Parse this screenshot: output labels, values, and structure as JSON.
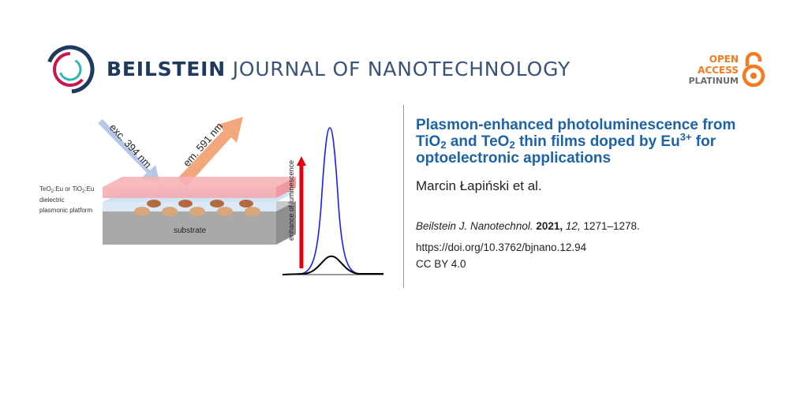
{
  "journal": {
    "name_bold": "BEILSTEIN",
    "name_rest": "JOURNAL OF NANOTECHNOLOGY"
  },
  "open_access": {
    "line1": "OPEN",
    "line2": "ACCESS",
    "line3": "PLATINUM"
  },
  "figure": {
    "exc_label": "exc. 394 nm",
    "em_label": "em. 591 nm",
    "layer_labels": {
      "film_prefix1": "TeO",
      "film_sub1": "2",
      "film_mid1": ":Eu or TiO",
      "film_sub2": "2",
      "film_suffix": ":Eu",
      "dielectric": "dielectric",
      "platform": "plasmonic platform"
    },
    "substrate_label": "substrate",
    "arrow_label": "enhance of luminescence",
    "colors": {
      "enhanced": "#1a1aff",
      "reference": "#000000",
      "arrow": "#e3000f"
    }
  },
  "article": {
    "title_p1": "Plasmon-enhanced photoluminescence from TiO",
    "title_sub1": "2",
    "title_p2": " and TeO",
    "title_sub2": "2",
    "title_p3": " thin films doped by Eu",
    "title_sup": "3+",
    "title_p4": " for optoelectronic applications",
    "authors": "Marcin Łapiński et al.",
    "citation_journal": "Beilstein J. Nanotechnol.",
    "citation_year": "2021,",
    "citation_volume": "12,",
    "citation_pages": "1271–1278.",
    "doi": "https://doi.org/10.3762/bjnano.12.94",
    "license": "CC BY 4.0"
  }
}
